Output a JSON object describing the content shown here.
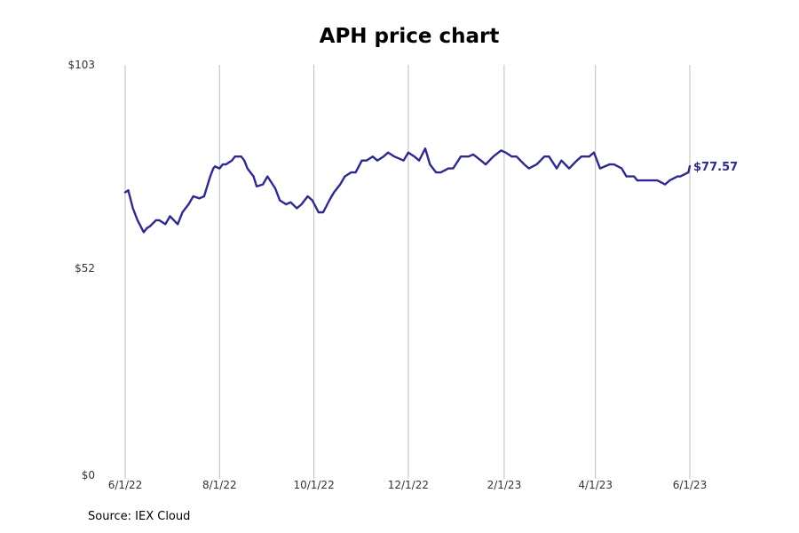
{
  "chart_data": {
    "type": "line",
    "title": "APH price chart",
    "source": "Source: IEX Cloud",
    "xlabel": "",
    "ylabel": "",
    "ylim": [
      0,
      103
    ],
    "xlim": [
      "2022-06-01",
      "2023-06-01"
    ],
    "y_ticks": [
      {
        "value": 0,
        "label": "$0"
      },
      {
        "value": 52,
        "label": "$52"
      },
      {
        "value": 103,
        "label": "$103"
      }
    ],
    "x_ticks": [
      {
        "date": "2022-06-01",
        "label": "6/1/22"
      },
      {
        "date": "2022-08-01",
        "label": "8/1/22"
      },
      {
        "date": "2022-10-01",
        "label": "10/1/22"
      },
      {
        "date": "2022-12-01",
        "label": "12/1/22"
      },
      {
        "date": "2023-02-01",
        "label": "2/1/23"
      },
      {
        "date": "2023-04-01",
        "label": "4/1/23"
      },
      {
        "date": "2023-06-01",
        "label": "6/1/23"
      }
    ],
    "grid": "vertical",
    "line_color": "#2e2a8c",
    "end_label": "$77.57",
    "series": [
      {
        "x": [
          "2022-06-01",
          "2022-06-03",
          "2022-06-06",
          "2022-06-09",
          "2022-06-13",
          "2022-06-15",
          "2022-06-17",
          "2022-06-21",
          "2022-06-23",
          "2022-06-27",
          "2022-06-30",
          "2022-07-05",
          "2022-07-08",
          "2022-07-12",
          "2022-07-15",
          "2022-07-19",
          "2022-07-22",
          "2022-07-26",
          "2022-07-28",
          "2022-07-29",
          "2022-08-01",
          "2022-08-03",
          "2022-08-05",
          "2022-08-09",
          "2022-08-11",
          "2022-08-15",
          "2022-08-17",
          "2022-08-19",
          "2022-08-23",
          "2022-08-25",
          "2022-08-29",
          "2022-09-01",
          "2022-09-06",
          "2022-09-09",
          "2022-09-13",
          "2022-09-16",
          "2022-09-20",
          "2022-09-23",
          "2022-09-27",
          "2022-09-30",
          "2022-10-04",
          "2022-10-07",
          "2022-10-11",
          "2022-10-14",
          "2022-10-18",
          "2022-10-21",
          "2022-10-25",
          "2022-10-28",
          "2022-11-01",
          "2022-11-04",
          "2022-11-08",
          "2022-11-11",
          "2022-11-15",
          "2022-11-18",
          "2022-11-22",
          "2022-11-28",
          "2022-12-01",
          "2022-12-05",
          "2022-12-08",
          "2022-12-12",
          "2022-12-15",
          "2022-12-19",
          "2022-12-22",
          "2022-12-27",
          "2022-12-30",
          "2023-01-04",
          "2023-01-09",
          "2023-01-12",
          "2023-01-17",
          "2023-01-20",
          "2023-01-25",
          "2023-01-30",
          "2023-02-02",
          "2023-02-06",
          "2023-02-09",
          "2023-02-14",
          "2023-02-17",
          "2023-02-22",
          "2023-02-27",
          "2023-03-02",
          "2023-03-07",
          "2023-03-10",
          "2023-03-15",
          "2023-03-20",
          "2023-03-23",
          "2023-03-28",
          "2023-03-31",
          "2023-04-04",
          "2023-04-10",
          "2023-04-13",
          "2023-04-18",
          "2023-04-21",
          "2023-04-26",
          "2023-04-28",
          "2023-05-03",
          "2023-05-08",
          "2023-05-11",
          "2023-05-16",
          "2023-05-19",
          "2023-05-24",
          "2023-05-26",
          "2023-05-31",
          "2023-06-01"
        ],
        "y": [
          71,
          71.5,
          67,
          64,
          61,
          62,
          62.5,
          64,
          64,
          63,
          65,
          63,
          66,
          68,
          70,
          69.5,
          70,
          75,
          77,
          77.5,
          77,
          78,
          78,
          79,
          80,
          80,
          79,
          77,
          75,
          72.5,
          73,
          75,
          72,
          69,
          68,
          68.5,
          67,
          68,
          70,
          69,
          66,
          66,
          69,
          71,
          73,
          75,
          76,
          76,
          79,
          79,
          80,
          79,
          80,
          81,
          80,
          79,
          81,
          80,
          79,
          82,
          78,
          76,
          76,
          77,
          77,
          80,
          80,
          80.5,
          79,
          78,
          80,
          81.5,
          81,
          80,
          80,
          78,
          77,
          78,
          80,
          80,
          77,
          79,
          77,
          79,
          80,
          80,
          81,
          77,
          78,
          78,
          77,
          75,
          75,
          74,
          74,
          74,
          74,
          73,
          74,
          75,
          75,
          76,
          77.57
        ]
      }
    ]
  }
}
